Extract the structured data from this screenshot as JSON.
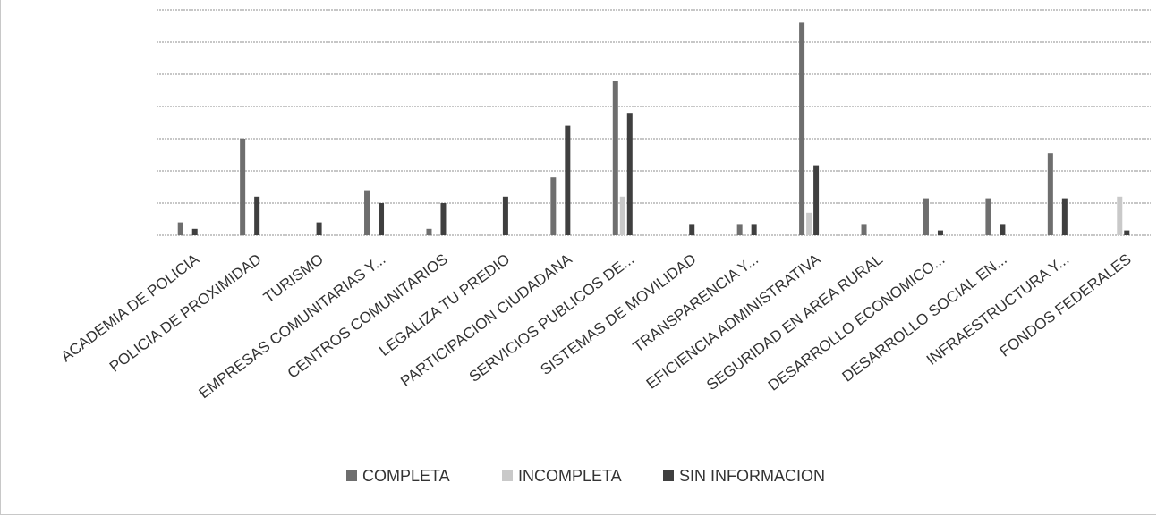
{
  "chart_data": {
    "type": "bar",
    "title": "",
    "xlabel": "",
    "ylabel": "",
    "grid": true,
    "legend_position": "bottom",
    "ylim": [
      0,
      7
    ],
    "categories": [
      "ACADEMIA DE POLICIA",
      "POLICIA DE PROXIMIDAD",
      "TURISMO",
      "EMPRESAS COMUNITARIAS Y...",
      "CENTROS COMUNITARIOS",
      "LEGALIZA TU PREDIO",
      "PARTICIPACION CIUDADANA",
      "SERVICIOS PUBLICOS DE...",
      "SISTEMAS DE MOVILIDAD",
      "TRANSPARENCIA Y...",
      "EFICIENCIA ADMINISTRATIVA",
      "SEGURIDAD EN AREA RURAL",
      "DESARROLLO ECONOMICO...",
      "DESARROLLO SOCIAL EN...",
      "INFRAESTRUCTURA Y...",
      "FONDOS FEDERALES"
    ],
    "series": [
      {
        "name": "COMPLETA",
        "color": "#6e6e6e",
        "values": [
          0.4,
          3,
          0,
          1.4,
          0.2,
          0,
          1.8,
          4.8,
          0,
          0.35,
          6.6,
          0.35,
          1.15,
          1.15,
          2.55,
          0
        ]
      },
      {
        "name": "INCOMPLETA",
        "color": "#c9c9c9",
        "values": [
          0,
          0,
          0,
          0,
          0,
          0,
          0,
          1.2,
          0,
          0,
          0.7,
          0,
          0,
          0,
          0,
          1.2
        ]
      },
      {
        "name": "SIN INFORMACION",
        "color": "#3f3f3f",
        "values": [
          0.2,
          1.2,
          0.4,
          1,
          1,
          1.2,
          3.4,
          3.8,
          0.35,
          0.35,
          2.15,
          0,
          0.15,
          0.35,
          1.15,
          0.15
        ]
      }
    ]
  }
}
